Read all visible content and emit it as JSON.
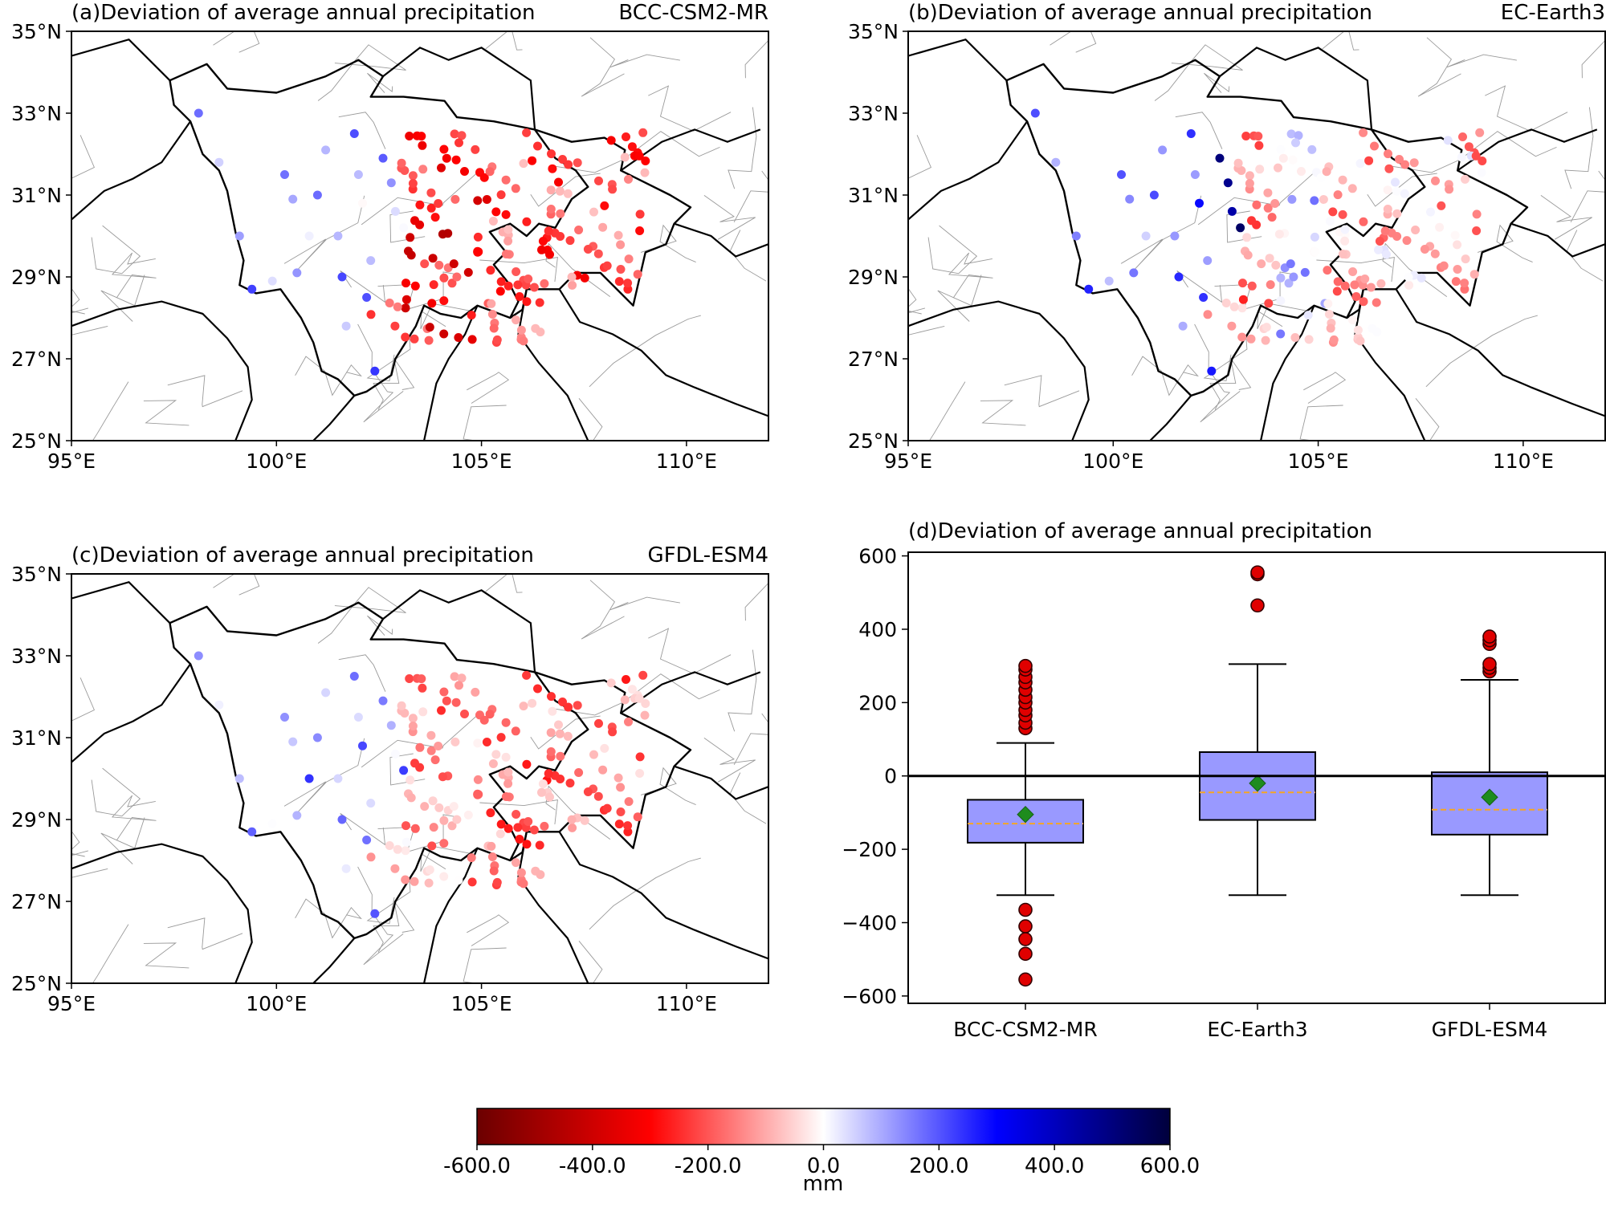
{
  "figure": {
    "panels": [
      {
        "id": "a",
        "title": "(a)Deviation of average annual precipitation",
        "model": "BCC-CSM2-MR",
        "bias": "red"
      },
      {
        "id": "b",
        "title": "(b)Deviation of average annual precipitation",
        "model": "EC-Earth3",
        "bias": "mixed"
      },
      {
        "id": "c",
        "title": "(c)Deviation of average annual precipitation",
        "model": "GFDL-ESM4",
        "bias": "light-red"
      }
    ],
    "boxplot_title": "(d)Deviation of average annual precipitation",
    "colorbar": {
      "label": "mm",
      "ticks": [
        "-600.0",
        "-400.0",
        "-200.0",
        "0.0",
        "200.0",
        "400.0",
        "600.0"
      ],
      "colors": [
        "#6b0000",
        "#ff0000",
        "#ffffff",
        "#0000ff",
        "#00003c"
      ]
    }
  },
  "chart_data": [
    {
      "type": "scatter",
      "subtype": "station-map",
      "panels": [
        "(a)",
        "(b)",
        "(c)"
      ],
      "x_ticks": [
        "95°E",
        "100°E",
        "105°E",
        "110°E"
      ],
      "y_ticks": [
        "25°N",
        "27°N",
        "29°N",
        "31°N",
        "33°N",
        "35°N"
      ],
      "xlim": [
        95,
        112
      ],
      "ylim": [
        25,
        35
      ],
      "color_range": [
        -600,
        600
      ]
    },
    {
      "type": "box",
      "title": "(d)Deviation of average annual precipitation",
      "categories": [
        "BCC-CSM2-MR",
        "EC-Earth3",
        "GFDL-ESM4"
      ],
      "ylim": [
        -620,
        610
      ],
      "y_ticks": [
        "600",
        "400",
        "200",
        "0",
        "−200",
        "−400",
        "−600"
      ],
      "y_tick_values": [
        600,
        400,
        200,
        0,
        -200,
        -400,
        -600
      ],
      "boxes": [
        {
          "name": "BCC-CSM2-MR",
          "whisker_low": -325,
          "q1": -182,
          "median": -130,
          "mean": -105,
          "q3": -65,
          "whisker_high": 90,
          "outliers": [
            130,
            145,
            165,
            180,
            200,
            215,
            235,
            255,
            270,
            290,
            300,
            -365,
            -410,
            -445,
            -485,
            -555
          ]
        },
        {
          "name": "EC-Earth3",
          "whisker_low": -325,
          "q1": -120,
          "median": -45,
          "mean": -20,
          "q3": 65,
          "whisker_high": 305,
          "outliers": [
            465,
            550,
            555
          ]
        },
        {
          "name": "GFDL-ESM4",
          "whisker_low": -325,
          "q1": -160,
          "median": -92,
          "mean": -58,
          "q3": 10,
          "whisker_high": 262,
          "outliers": [
            285,
            295,
            305,
            360,
            370,
            380
          ]
        }
      ],
      "reference_line": 0
    }
  ]
}
